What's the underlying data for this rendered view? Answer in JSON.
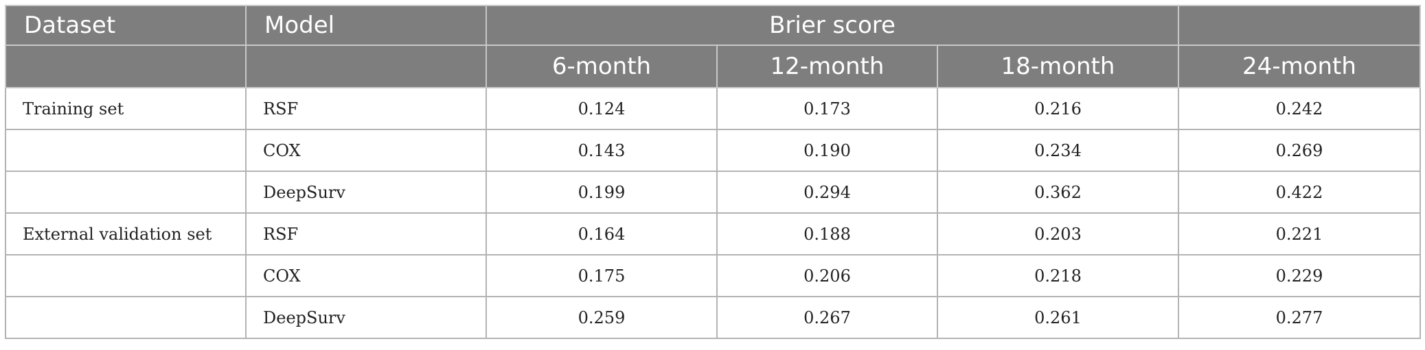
{
  "headers": {
    "dataset": "Dataset",
    "model": "Model",
    "brier": "Brier score",
    "periods": [
      "6-month",
      "12-month",
      "18-month",
      "24-month"
    ]
  },
  "rows": [
    {
      "dataset": "Training set",
      "model": "RSF",
      "values": [
        "0.124",
        "0.173",
        "0.216",
        "0.242"
      ]
    },
    {
      "dataset": "",
      "model": "COX",
      "values": [
        "0.143",
        "0.190",
        "0.234",
        "0.269"
      ]
    },
    {
      "dataset": "",
      "model": "DeepSurv",
      "values": [
        "0.199",
        "0.294",
        "0.362",
        "0.422"
      ]
    },
    {
      "dataset": "External validation set",
      "model": "RSF",
      "values": [
        "0.164",
        "0.188",
        "0.203",
        "0.221"
      ]
    },
    {
      "dataset": "",
      "model": "COX",
      "values": [
        "0.175",
        "0.206",
        "0.218",
        "0.229"
      ]
    },
    {
      "dataset": "",
      "model": "DeepSurv",
      "values": [
        "0.259",
        "0.267",
        "0.261",
        "0.277"
      ]
    }
  ]
}
